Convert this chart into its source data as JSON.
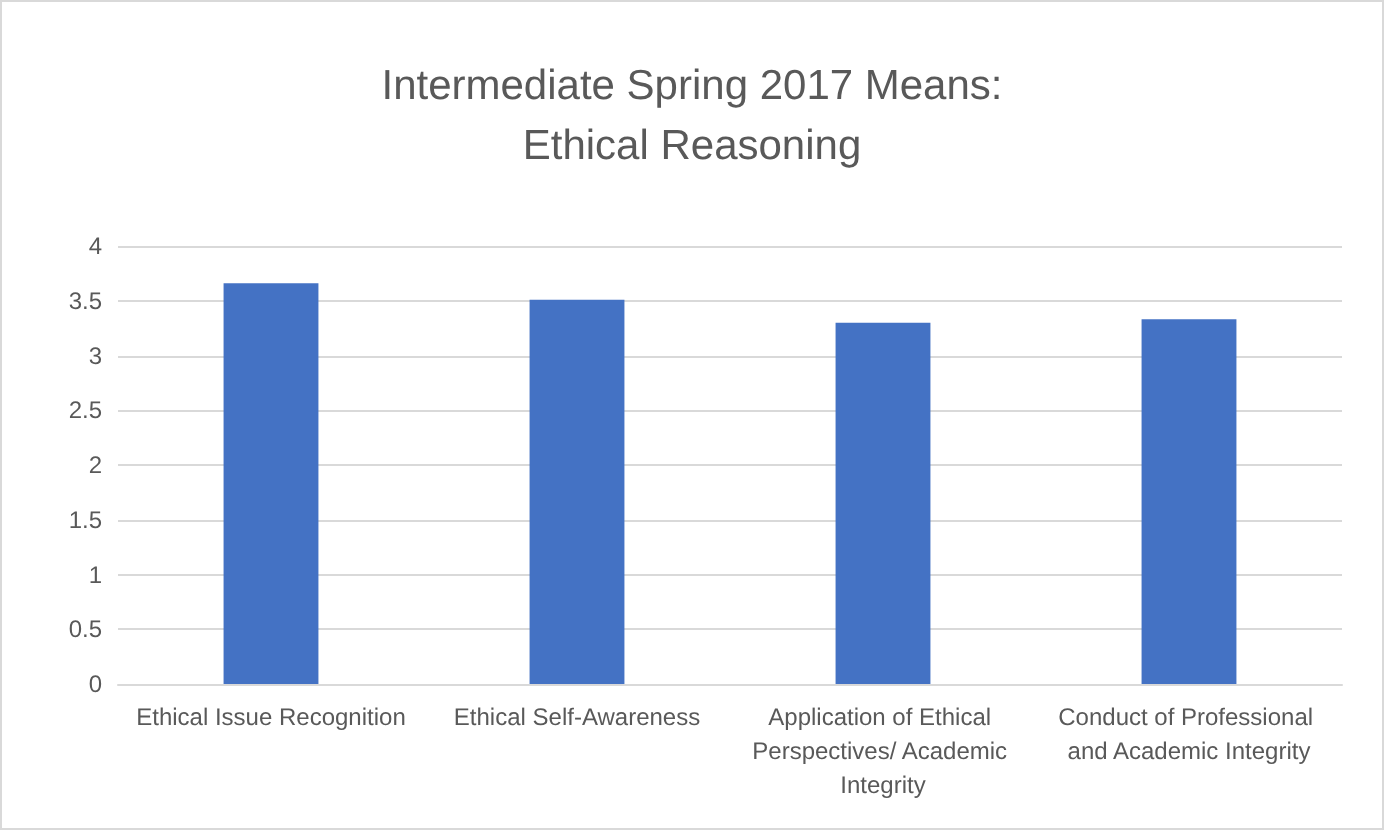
{
  "chart_data": {
    "type": "bar",
    "title": "Intermediate Spring 2017 Means:\nEthical Reasoning",
    "categories": [
      "Ethical Issue Recognition",
      "Ethical Self-Awareness",
      "Application of Ethical Perspectives/ Academic Integrity",
      "Conduct of Professional and Academic Integrity"
    ],
    "values": [
      3.66,
      3.51,
      3.3,
      3.33
    ],
    "color": "#4472c4",
    "ylim": [
      0,
      4
    ],
    "yticks": [
      0,
      0.5,
      1,
      1.5,
      2,
      2.5,
      3,
      3.5,
      4
    ],
    "grid": "y"
  }
}
